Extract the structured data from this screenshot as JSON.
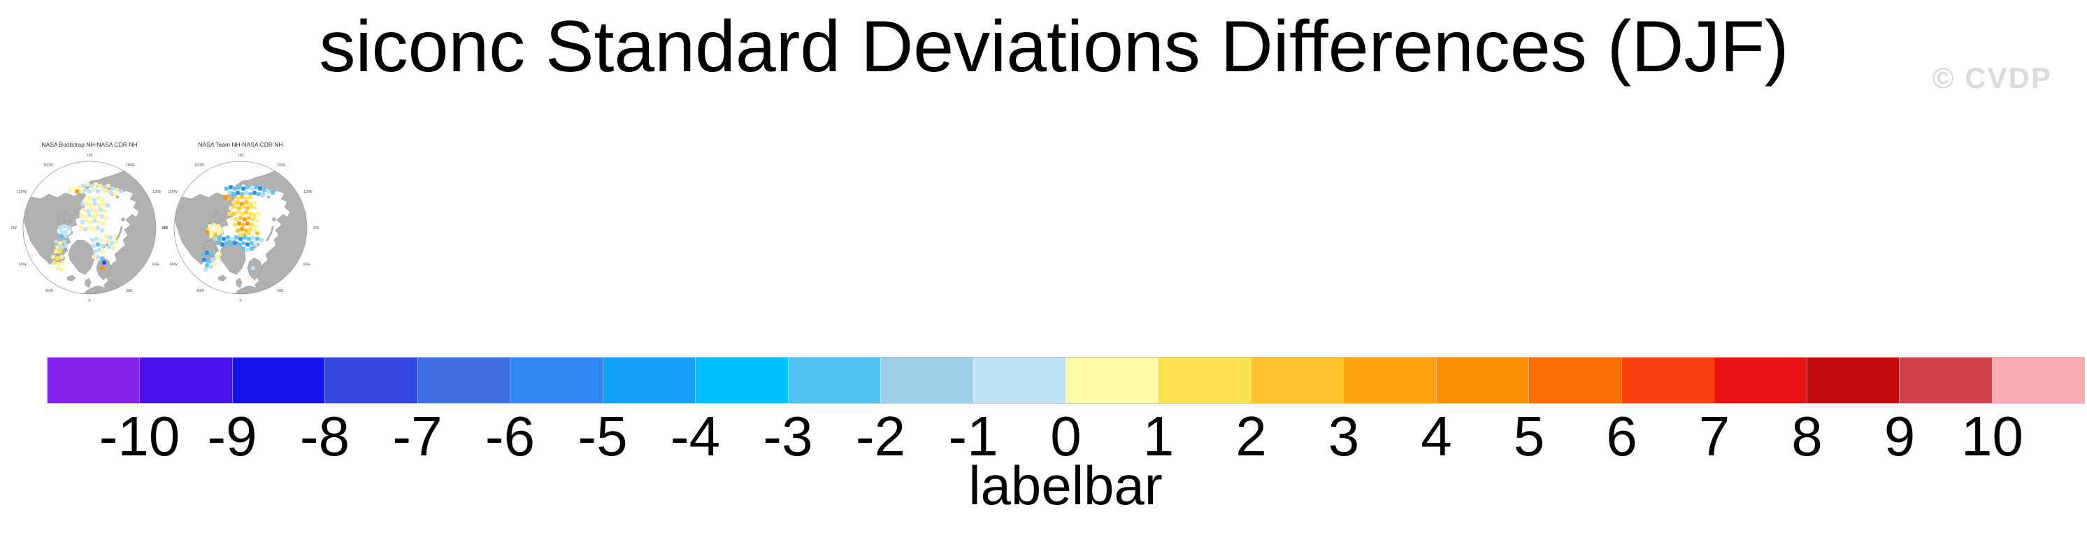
{
  "header": {
    "title": "siconc Standard Deviations Differences (DJF)",
    "watermark": "© CVDP"
  },
  "maps": {
    "panels": [
      {
        "title": "NASA Bootstrap NH-NASA CDR NH",
        "cells": [
          [
            85,
            42,
            "py"
          ],
          [
            91,
            40,
            "lb"
          ],
          [
            97,
            38,
            "py"
          ],
          [
            103,
            40,
            "lb"
          ],
          [
            109,
            38,
            "py"
          ],
          [
            115,
            40,
            "py"
          ],
          [
            121,
            42,
            "lb"
          ],
          [
            127,
            40,
            "py"
          ],
          [
            133,
            44,
            "lb"
          ],
          [
            139,
            46,
            "py"
          ],
          [
            145,
            48,
            "lb"
          ],
          [
            82,
            48,
            "or"
          ],
          [
            88,
            48,
            "py"
          ],
          [
            94,
            46,
            "lb"
          ],
          [
            100,
            48,
            "lb"
          ],
          [
            106,
            46,
            "py"
          ],
          [
            112,
            48,
            "lb"
          ],
          [
            118,
            46,
            "py"
          ],
          [
            124,
            48,
            "py"
          ],
          [
            130,
            50,
            "lb"
          ],
          [
            136,
            52,
            "py"
          ],
          [
            72,
            46,
            "py"
          ],
          [
            78,
            44,
            "py"
          ],
          [
            95,
            60,
            "py"
          ],
          [
            101,
            58,
            "py"
          ],
          [
            107,
            60,
            "lb"
          ],
          [
            113,
            58,
            "py"
          ],
          [
            119,
            60,
            "py"
          ],
          [
            90,
            66,
            "lb"
          ],
          [
            96,
            66,
            "py"
          ],
          [
            102,
            68,
            "py"
          ],
          [
            108,
            66,
            "lb"
          ],
          [
            114,
            68,
            "py"
          ],
          [
            120,
            66,
            "py"
          ],
          [
            126,
            68,
            "lb"
          ],
          [
            92,
            74,
            "py"
          ],
          [
            98,
            76,
            "lb"
          ],
          [
            104,
            74,
            "py"
          ],
          [
            110,
            76,
            "py"
          ],
          [
            116,
            74,
            "lb"
          ],
          [
            122,
            76,
            "py"
          ],
          [
            88,
            82,
            "py"
          ],
          [
            94,
            84,
            "py"
          ],
          [
            100,
            82,
            "lb"
          ],
          [
            106,
            84,
            "py"
          ],
          [
            112,
            82,
            "py"
          ],
          [
            118,
            84,
            "lb"
          ],
          [
            124,
            86,
            "py"
          ],
          [
            90,
            92,
            "lb"
          ],
          [
            96,
            90,
            "py"
          ],
          [
            102,
            92,
            "py"
          ],
          [
            108,
            90,
            "lb"
          ],
          [
            114,
            92,
            "py"
          ],
          [
            120,
            94,
            "py"
          ],
          [
            88,
            100,
            "py"
          ],
          [
            94,
            102,
            "lb"
          ],
          [
            100,
            100,
            "py"
          ],
          [
            106,
            102,
            "py"
          ],
          [
            112,
            100,
            "lb"
          ],
          [
            118,
            104,
            "lb"
          ],
          [
            58,
            100,
            "lb"
          ],
          [
            64,
            98,
            "lb"
          ],
          [
            70,
            100,
            "lb"
          ],
          [
            60,
            106,
            "lb"
          ],
          [
            66,
            106,
            "lb"
          ],
          [
            60,
            112,
            "sb"
          ],
          [
            66,
            112,
            "lb"
          ],
          [
            52,
            120,
            "lb"
          ],
          [
            58,
            122,
            "py"
          ],
          [
            64,
            120,
            "lb"
          ],
          [
            54,
            128,
            "py"
          ],
          [
            60,
            128,
            "lb"
          ],
          [
            66,
            126,
            "lb"
          ],
          [
            52,
            134,
            "py"
          ],
          [
            58,
            134,
            "y"
          ],
          [
            104,
            118,
            "lb"
          ],
          [
            110,
            116,
            "lb"
          ],
          [
            116,
            118,
            "py"
          ],
          [
            106,
            126,
            "lb"
          ],
          [
            112,
            124,
            "sb"
          ],
          [
            118,
            126,
            "lb"
          ],
          [
            108,
            134,
            "lb"
          ],
          [
            114,
            132,
            "lb"
          ],
          [
            120,
            134,
            "py"
          ],
          [
            112,
            142,
            "lb"
          ],
          [
            118,
            144,
            "sb"
          ],
          [
            106,
            142,
            "py"
          ],
          [
            48,
            142,
            "py"
          ],
          [
            54,
            144,
            "y"
          ],
          [
            60,
            142,
            "py"
          ],
          [
            50,
            150,
            "y"
          ],
          [
            56,
            152,
            "py"
          ],
          [
            62,
            150,
            "py"
          ],
          [
            55,
            158,
            "py"
          ],
          [
            61,
            160,
            "py"
          ],
          [
            124,
            112,
            "py"
          ],
          [
            130,
            114,
            "lb"
          ],
          [
            136,
            112,
            "py"
          ],
          [
            126,
            120,
            "py"
          ],
          [
            132,
            122,
            "lb"
          ],
          [
            138,
            120,
            "py"
          ],
          [
            128,
            128,
            "lb"
          ],
          [
            134,
            130,
            "py"
          ],
          [
            118,
            158,
            "or"
          ],
          [
            121,
            150,
            "db"
          ]
        ]
      },
      {
        "title": "NASA Team NH-NASA CDR NH",
        "cells": [
          [
            80,
            44,
            "sb"
          ],
          [
            86,
            42,
            "b"
          ],
          [
            92,
            44,
            "sb"
          ],
          [
            98,
            42,
            "sb"
          ],
          [
            104,
            44,
            "b"
          ],
          [
            110,
            42,
            "sb"
          ],
          [
            116,
            44,
            "lb"
          ],
          [
            122,
            42,
            "sb"
          ],
          [
            128,
            44,
            "b"
          ],
          [
            134,
            46,
            "sb"
          ],
          [
            140,
            48,
            "lb"
          ],
          [
            146,
            50,
            "sb"
          ],
          [
            84,
            50,
            "lb"
          ],
          [
            90,
            52,
            "sb"
          ],
          [
            96,
            50,
            "b"
          ],
          [
            102,
            52,
            "sb"
          ],
          [
            108,
            50,
            "lb"
          ],
          [
            114,
            52,
            "sb"
          ],
          [
            120,
            50,
            "b"
          ],
          [
            126,
            52,
            "sb"
          ],
          [
            132,
            54,
            "lb"
          ],
          [
            78,
            56,
            "or"
          ],
          [
            84,
            58,
            "go"
          ],
          [
            96,
            58,
            "y"
          ],
          [
            102,
            56,
            "go"
          ],
          [
            108,
            58,
            "y"
          ],
          [
            114,
            56,
            "y"
          ],
          [
            90,
            64,
            "y"
          ],
          [
            96,
            64,
            "go"
          ],
          [
            102,
            66,
            "or"
          ],
          [
            108,
            64,
            "go"
          ],
          [
            114,
            66,
            "y"
          ],
          [
            120,
            64,
            "py"
          ],
          [
            86,
            72,
            "py"
          ],
          [
            92,
            70,
            "y"
          ],
          [
            98,
            72,
            "go"
          ],
          [
            104,
            70,
            "y"
          ],
          [
            110,
            72,
            "go"
          ],
          [
            116,
            70,
            "y"
          ],
          [
            122,
            72,
            "py"
          ],
          [
            84,
            80,
            "y"
          ],
          [
            90,
            80,
            "go"
          ],
          [
            96,
            78,
            "y"
          ],
          [
            102,
            80,
            "y"
          ],
          [
            108,
            78,
            "go"
          ],
          [
            114,
            80,
            "y"
          ],
          [
            120,
            82,
            "y"
          ],
          [
            126,
            80,
            "py"
          ],
          [
            88,
            88,
            "py"
          ],
          [
            94,
            88,
            "y"
          ],
          [
            100,
            86,
            "go"
          ],
          [
            106,
            88,
            "or"
          ],
          [
            112,
            86,
            "go"
          ],
          [
            118,
            88,
            "y"
          ],
          [
            124,
            90,
            "py"
          ],
          [
            92,
            96,
            "y"
          ],
          [
            98,
            94,
            "or"
          ],
          [
            104,
            96,
            "go"
          ],
          [
            110,
            94,
            "or"
          ],
          [
            116,
            96,
            "y"
          ],
          [
            122,
            98,
            "py"
          ],
          [
            96,
            104,
            "go"
          ],
          [
            102,
            102,
            "or"
          ],
          [
            108,
            104,
            "go"
          ],
          [
            114,
            102,
            "y"
          ],
          [
            120,
            104,
            "py"
          ],
          [
            100,
            110,
            "y"
          ],
          [
            106,
            110,
            "go"
          ],
          [
            112,
            108,
            "y"
          ],
          [
            124,
            108,
            "go"
          ],
          [
            64,
            116,
            "lb"
          ],
          [
            70,
            114,
            "sb"
          ],
          [
            76,
            116,
            "b"
          ],
          [
            82,
            114,
            "sb"
          ],
          [
            88,
            116,
            "lb"
          ],
          [
            94,
            114,
            "sb"
          ],
          [
            100,
            116,
            "b"
          ],
          [
            106,
            114,
            "sb"
          ],
          [
            112,
            116,
            "sb"
          ],
          [
            118,
            114,
            "lb"
          ],
          [
            124,
            116,
            "sb"
          ],
          [
            130,
            118,
            "lb"
          ],
          [
            68,
            122,
            "sb"
          ],
          [
            74,
            124,
            "b"
          ],
          [
            80,
            122,
            "sb"
          ],
          [
            86,
            124,
            "sb"
          ],
          [
            92,
            122,
            "b"
          ],
          [
            98,
            124,
            "sb"
          ],
          [
            104,
            122,
            "sb"
          ],
          [
            110,
            124,
            "b"
          ],
          [
            116,
            122,
            "sb"
          ],
          [
            122,
            124,
            "lb"
          ],
          [
            104,
            130,
            "sb"
          ],
          [
            110,
            132,
            "lb"
          ],
          [
            116,
            130,
            "sb"
          ],
          [
            56,
            98,
            "py"
          ],
          [
            62,
            96,
            "py"
          ],
          [
            68,
            98,
            "py"
          ],
          [
            54,
            104,
            "py"
          ],
          [
            60,
            106,
            "py"
          ],
          [
            66,
            104,
            "py"
          ],
          [
            72,
            106,
            "py"
          ],
          [
            58,
            112,
            "py"
          ],
          [
            64,
            110,
            "go"
          ],
          [
            52,
            106,
            "or"
          ],
          [
            46,
            138,
            "sb"
          ],
          [
            52,
            136,
            "b"
          ],
          [
            58,
            138,
            "sb"
          ],
          [
            48,
            146,
            "b"
          ],
          [
            54,
            148,
            "sb"
          ],
          [
            60,
            146,
            "lb"
          ],
          [
            52,
            154,
            "sb"
          ],
          [
            58,
            156,
            "lb"
          ],
          [
            64,
            152,
            "py"
          ],
          [
            50,
            160,
            "lb"
          ],
          [
            66,
            142,
            "py"
          ],
          [
            70,
            138,
            "py"
          ],
          [
            118,
            158,
            "lb"
          ]
        ]
      }
    ],
    "lon_labels": [
      {
        "t": "180",
        "a": 0
      },
      {
        "t": "150E",
        "a": 30
      },
      {
        "t": "120E",
        "a": 60
      },
      {
        "t": "90E",
        "a": 90
      },
      {
        "t": "60E",
        "a": 120
      },
      {
        "t": "30E",
        "a": 150
      },
      {
        "t": "0",
        "a": 180
      },
      {
        "t": "30W",
        "a": 210
      },
      {
        "t": "60W",
        "a": 240
      },
      {
        "t": "90W",
        "a": 270
      },
      {
        "t": "120W",
        "a": 300
      },
      {
        "t": "150W",
        "a": 330
      }
    ],
    "cell_colors": {
      "py": "#FDF2A2",
      "y": "#FEE150",
      "go": "#FEC32C",
      "or": "#FB9307",
      "lb": "#B9E1F3",
      "sb": "#56C6F0",
      "b": "#2E86F0",
      "db": "#3348E0"
    },
    "land_color": "#B1B1B1",
    "coast_color": "#878787",
    "circle_color": "#9A9A9A",
    "label_color": "#555555"
  },
  "colorbar": {
    "label": "labelbar",
    "ticks": [
      -10,
      -9,
      -8,
      -7,
      -6,
      -5,
      -4,
      -3,
      -2,
      -1,
      0,
      1,
      2,
      3,
      4,
      5,
      6,
      7,
      8,
      9,
      10
    ],
    "colors": [
      "#8222EC",
      "#4A12EA",
      "#1512EC",
      "#3348E0",
      "#3E6EE2",
      "#2E86F0",
      "#129FF8",
      "#00BFFC",
      "#4FC2F2",
      "#9CCFE8",
      "#BDE3F6",
      "#FEF9A6",
      "#FEE150",
      "#FEC32C",
      "#FBA20C",
      "#FB8D05",
      "#F86E00",
      "#FA3E0E",
      "#E91111",
      "#C40A0A",
      "#CE4147",
      "#FBADB2"
    ]
  },
  "chart_data": {
    "type": "heatmap",
    "title": "siconc Standard Deviations Differences (DJF)",
    "variable": "siconc",
    "season": "DJF",
    "watermark": "© CVDP",
    "panels": [
      "NASA Bootstrap NH-NASA CDR NH",
      "NASA Team NH-NASA CDR NH"
    ],
    "projection": "north-polar-stereographic",
    "legend_position": "bottom",
    "colorbar": {
      "label": "labelbar",
      "orientation": "horizontal",
      "levels": [
        -10,
        -9,
        -8,
        -7,
        -6,
        -5,
        -4,
        -3,
        -2,
        -1,
        0,
        1,
        2,
        3,
        4,
        5,
        6,
        7,
        8,
        9,
        10
      ],
      "colors": [
        "#8222EC",
        "#4A12EA",
        "#1512EC",
        "#3348E0",
        "#3E6EE2",
        "#2E86F0",
        "#129FF8",
        "#00BFFC",
        "#4FC2F2",
        "#9CCFE8",
        "#BDE3F6",
        "#FEF9A6",
        "#FEE150",
        "#FEC32C",
        "#FBA20C",
        "#FB8D05",
        "#F86E00",
        "#FA3E0E",
        "#E91111",
        "#C40A0A",
        "#CE4147",
        "#FBADB2"
      ]
    }
  }
}
